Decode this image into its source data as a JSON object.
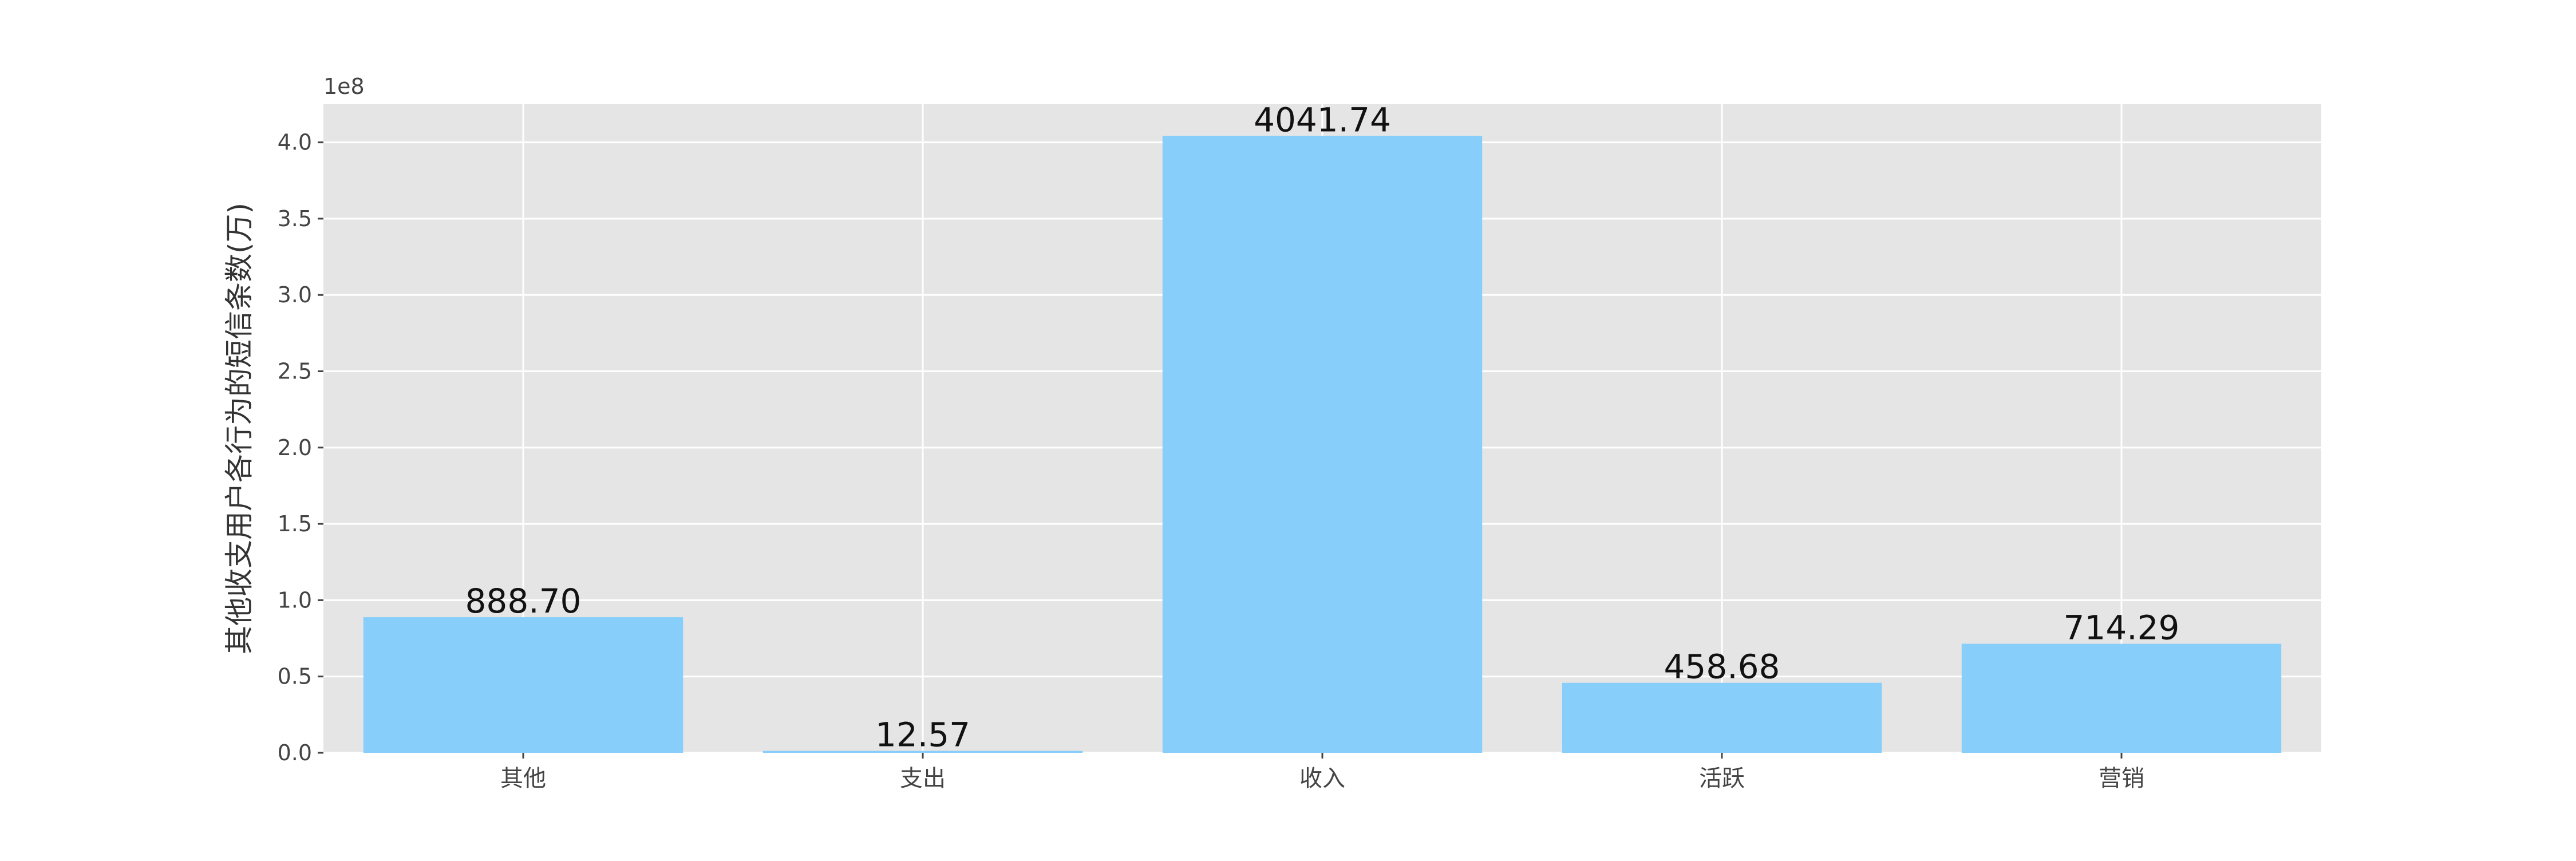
{
  "chart_data": {
    "type": "bar",
    "categories": [
      "其他",
      "支出",
      "收入",
      "活跃",
      "营销"
    ],
    "values": [
      88870000,
      1257000,
      404174000,
      45868000,
      71429000
    ],
    "value_labels": [
      "888.70",
      "12.57",
      "4041.74",
      "458.68",
      "714.29"
    ],
    "title": "",
    "xlabel": "",
    "ylabel": "其他收支用户各行为的短信条数(万)",
    "y_offset_label": "1e8",
    "ylim": [
      0,
      425000000
    ],
    "yticks": [
      0,
      50000000,
      100000000,
      150000000,
      200000000,
      250000000,
      300000000,
      350000000,
      400000000
    ],
    "ytick_labels": [
      "0.0",
      "0.5",
      "1.0",
      "1.5",
      "2.0",
      "2.5",
      "3.0",
      "3.5",
      "4.0"
    ],
    "grid": true,
    "legend": "none",
    "colors": {
      "bar": "#87cefa",
      "plot_background": "#e5e5e5",
      "grid": "#ffffff"
    }
  }
}
